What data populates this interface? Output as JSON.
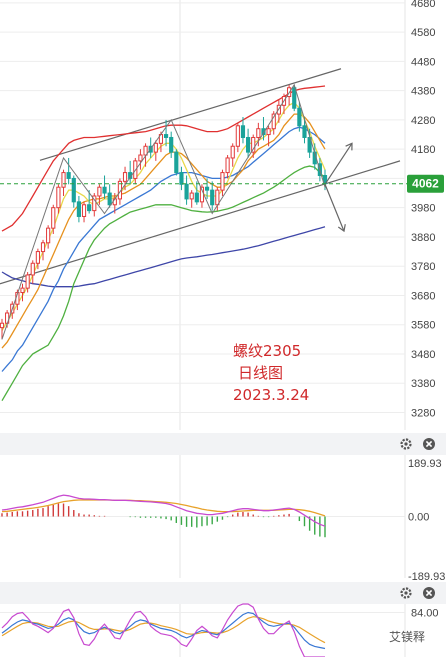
{
  "chart_data": [
    {
      "type": "candlestick",
      "annotation": {
        "line1": "螺纹2305",
        "line2": "日线图",
        "line3": "2023.3.24"
      },
      "y_ticks": [
        "4680",
        "4580",
        "4480",
        "4380",
        "4280",
        "4180",
        "4080",
        "3980",
        "3880",
        "3780",
        "3680",
        "3580",
        "3480",
        "3380",
        "3280"
      ],
      "ylim": [
        3220,
        4690
      ],
      "current_price": "4062",
      "colors": {
        "up": "#e23a3a",
        "down": "#1aa39a",
        "ma5": "#e8d84a",
        "ma10": "#e6911e",
        "ma20": "#3a78d4",
        "ma60": "#3e46a8",
        "ma120": "#4fb040",
        "boll_up": "#e03030",
        "channel": "#666666"
      },
      "candles": [
        {
          "o": 3570,
          "h": 3600,
          "l": 3530,
          "c": 3585
        },
        {
          "o": 3585,
          "h": 3630,
          "l": 3570,
          "c": 3620
        },
        {
          "o": 3620,
          "h": 3660,
          "l": 3600,
          "c": 3650
        },
        {
          "o": 3650,
          "h": 3700,
          "l": 3630,
          "c": 3690
        },
        {
          "o": 3690,
          "h": 3720,
          "l": 3660,
          "c": 3705
        },
        {
          "o": 3705,
          "h": 3760,
          "l": 3690,
          "c": 3750
        },
        {
          "o": 3750,
          "h": 3800,
          "l": 3720,
          "c": 3790
        },
        {
          "o": 3790,
          "h": 3840,
          "l": 3770,
          "c": 3830
        },
        {
          "o": 3830,
          "h": 3870,
          "l": 3800,
          "c": 3860
        },
        {
          "o": 3860,
          "h": 3920,
          "l": 3840,
          "c": 3910
        },
        {
          "o": 3910,
          "h": 3990,
          "l": 3890,
          "c": 3980
        },
        {
          "o": 3980,
          "h": 4060,
          "l": 3960,
          "c": 4050
        },
        {
          "o": 4050,
          "h": 4110,
          "l": 4020,
          "c": 4100
        },
        {
          "o": 4100,
          "h": 4150,
          "l": 4060,
          "c": 4080
        },
        {
          "o": 4080,
          "h": 4090,
          "l": 3980,
          "c": 4000
        },
        {
          "o": 4000,
          "h": 4020,
          "l": 3930,
          "c": 3950
        },
        {
          "o": 3950,
          "h": 4000,
          "l": 3930,
          "c": 3990
        },
        {
          "o": 3990,
          "h": 4040,
          "l": 3960,
          "c": 3970
        },
        {
          "o": 3970,
          "h": 4030,
          "l": 3950,
          "c": 4020
        },
        {
          "o": 4020,
          "h": 4060,
          "l": 3990,
          "c": 4050
        },
        {
          "o": 4050,
          "h": 4090,
          "l": 4010,
          "c": 4030
        },
        {
          "o": 4030,
          "h": 4060,
          "l": 3980,
          "c": 3990
        },
        {
          "o": 3990,
          "h": 4030,
          "l": 3960,
          "c": 4010
        },
        {
          "o": 4010,
          "h": 4080,
          "l": 3990,
          "c": 4070
        },
        {
          "o": 4070,
          "h": 4120,
          "l": 4040,
          "c": 4100
        },
        {
          "o": 4100,
          "h": 4140,
          "l": 4060,
          "c": 4080
        },
        {
          "o": 4080,
          "h": 4150,
          "l": 4060,
          "c": 4140
        },
        {
          "o": 4140,
          "h": 4180,
          "l": 4110,
          "c": 4160
        },
        {
          "o": 4160,
          "h": 4200,
          "l": 4120,
          "c": 4190
        },
        {
          "o": 4190,
          "h": 4220,
          "l": 4150,
          "c": 4170
        },
        {
          "o": 4170,
          "h": 4210,
          "l": 4140,
          "c": 4200
        },
        {
          "o": 4200,
          "h": 4240,
          "l": 4170,
          "c": 4230
        },
        {
          "o": 4230,
          "h": 4280,
          "l": 4190,
          "c": 4220
        },
        {
          "o": 4220,
          "h": 4240,
          "l": 4150,
          "c": 4170
        },
        {
          "o": 4170,
          "h": 4180,
          "l": 4090,
          "c": 4100
        },
        {
          "o": 4100,
          "h": 4120,
          "l": 4040,
          "c": 4060
        },
        {
          "o": 4060,
          "h": 4090,
          "l": 3990,
          "c": 4010
        },
        {
          "o": 4010,
          "h": 4040,
          "l": 3980,
          "c": 4030
        },
        {
          "o": 4030,
          "h": 4070,
          "l": 3990,
          "c": 4000
        },
        {
          "o": 4000,
          "h": 4060,
          "l": 3980,
          "c": 4050
        },
        {
          "o": 4050,
          "h": 4080,
          "l": 4010,
          "c": 4040
        },
        {
          "o": 4040,
          "h": 4070,
          "l": 3970,
          "c": 3990
        },
        {
          "o": 3990,
          "h": 4050,
          "l": 3970,
          "c": 4040
        },
        {
          "o": 4040,
          "h": 4110,
          "l": 4020,
          "c": 4100
        },
        {
          "o": 4100,
          "h": 4160,
          "l": 4080,
          "c": 4150
        },
        {
          "o": 4150,
          "h": 4200,
          "l": 4120,
          "c": 4190
        },
        {
          "o": 4190,
          "h": 4270,
          "l": 4170,
          "c": 4260
        },
        {
          "o": 4260,
          "h": 4290,
          "l": 4200,
          "c": 4220
        },
        {
          "o": 4220,
          "h": 4250,
          "l": 4150,
          "c": 4170
        },
        {
          "o": 4170,
          "h": 4230,
          "l": 4150,
          "c": 4220
        },
        {
          "o": 4220,
          "h": 4270,
          "l": 4190,
          "c": 4250
        },
        {
          "o": 4250,
          "h": 4290,
          "l": 4210,
          "c": 4230
        },
        {
          "o": 4230,
          "h": 4260,
          "l": 4190,
          "c": 4250
        },
        {
          "o": 4250,
          "h": 4310,
          "l": 4230,
          "c": 4300
        },
        {
          "o": 4300,
          "h": 4350,
          "l": 4270,
          "c": 4330
        },
        {
          "o": 4330,
          "h": 4370,
          "l": 4300,
          "c": 4360
        },
        {
          "o": 4360,
          "h": 4400,
          "l": 4330,
          "c": 4390
        },
        {
          "o": 4390,
          "h": 4400,
          "l": 4310,
          "c": 4320
        },
        {
          "o": 4320,
          "h": 4340,
          "l": 4240,
          "c": 4260
        },
        {
          "o": 4260,
          "h": 4290,
          "l": 4200,
          "c": 4220
        },
        {
          "o": 4220,
          "h": 4250,
          "l": 4150,
          "c": 4170
        },
        {
          "o": 4170,
          "h": 4200,
          "l": 4110,
          "c": 4130
        },
        {
          "o": 4130,
          "h": 4150,
          "l": 4070,
          "c": 4090
        },
        {
          "o": 4090,
          "h": 4110,
          "l": 4040,
          "c": 4062
        }
      ],
      "ma5": [
        3560,
        3590,
        3620,
        3650,
        3680,
        3710,
        3750,
        3790,
        3830,
        3870,
        3910,
        3960,
        4010,
        4040,
        4040,
        4030,
        4020,
        4000,
        3990,
        4000,
        4010,
        4010,
        4015,
        4030,
        4050,
        4060,
        4080,
        4100,
        4130,
        4150,
        4170,
        4190,
        4200,
        4200,
        4180,
        4150,
        4110,
        4070,
        4040,
        4030,
        4020,
        4020,
        4020,
        4040,
        4070,
        4110,
        4150,
        4180,
        4200,
        4200,
        4210,
        4220,
        4235,
        4250,
        4280,
        4310,
        4330,
        4340,
        4320,
        4280,
        4240,
        4190,
        4150,
        4110
      ],
      "ma10": [
        3500,
        3520,
        3550,
        3580,
        3610,
        3640,
        3670,
        3700,
        3740,
        3780,
        3820,
        3860,
        3900,
        3940,
        3970,
        3990,
        4000,
        4005,
        4010,
        4010,
        4015,
        4020,
        4020,
        4025,
        4030,
        4040,
        4050,
        4060,
        4080,
        4100,
        4120,
        4140,
        4160,
        4170,
        4170,
        4165,
        4150,
        4130,
        4110,
        4090,
        4070,
        4060,
        4050,
        4050,
        4060,
        4070,
        4090,
        4110,
        4140,
        4160,
        4180,
        4190,
        4200,
        4210,
        4230,
        4260,
        4280,
        4300,
        4300,
        4290,
        4270,
        4240,
        4210,
        4180
      ],
      "ma20": [
        3420,
        3440,
        3460,
        3490,
        3510,
        3540,
        3570,
        3600,
        3630,
        3660,
        3700,
        3730,
        3770,
        3800,
        3830,
        3860,
        3880,
        3900,
        3920,
        3940,
        3950,
        3960,
        3970,
        3980,
        3990,
        4000,
        4010,
        4020,
        4030,
        4040,
        4055,
        4070,
        4080,
        4090,
        4095,
        4100,
        4100,
        4100,
        4095,
        4090,
        4085,
        4080,
        4080,
        4080,
        4085,
        4090,
        4100,
        4110,
        4120,
        4135,
        4150,
        4165,
        4180,
        4195,
        4210,
        4225,
        4240,
        4250,
        4255,
        4250,
        4240,
        4230,
        4215,
        4200
      ],
      "ma60": [
        3760,
        3750,
        3740,
        3735,
        3730,
        3725,
        3720,
        3718,
        3715,
        3712,
        3710,
        3710,
        3710,
        3710,
        3710,
        3712,
        3715,
        3718,
        3720,
        3725,
        3730,
        3735,
        3740,
        3745,
        3750,
        3755,
        3760,
        3765,
        3770,
        3775,
        3780,
        3785,
        3790,
        3795,
        3800,
        3805,
        3808,
        3810,
        3812,
        3815,
        3818,
        3820,
        3823,
        3826,
        3829,
        3832,
        3835,
        3838,
        3842,
        3846,
        3850,
        3855,
        3860,
        3865,
        3870,
        3875,
        3880,
        3885,
        3890,
        3895,
        3900,
        3905,
        3910,
        3915
      ],
      "ma120": [
        3320,
        3350,
        3380,
        3410,
        3440,
        3460,
        3480,
        3490,
        3500,
        3510,
        3540,
        3570,
        3610,
        3660,
        3720,
        3760,
        3800,
        3840,
        3870,
        3890,
        3910,
        3925,
        3935,
        3945,
        3955,
        3965,
        3970,
        3975,
        3980,
        3985,
        3990,
        3990,
        3990,
        3990,
        3985,
        3980,
        3975,
        3970,
        3968,
        3966,
        3965,
        3966,
        3968,
        3972,
        3976,
        3982,
        3990,
        3998,
        4006,
        4014,
        4022,
        4030,
        4040,
        4050,
        4062,
        4075,
        4088,
        4100,
        4110,
        4118,
        4122,
        4118,
        4100,
        4080
      ],
      "boll_up": [
        3900,
        3910,
        3920,
        3940,
        3960,
        3990,
        4020,
        4050,
        4080,
        4110,
        4140,
        4160,
        4180,
        4200,
        4210,
        4215,
        4220,
        4220,
        4220,
        4222,
        4224,
        4226,
        4228,
        4230,
        4232,
        4234,
        4236,
        4238,
        4240,
        4245,
        4250,
        4255,
        4260,
        4262,
        4262,
        4262,
        4260,
        4255,
        4250,
        4245,
        4240,
        4240,
        4240,
        4245,
        4250,
        4260,
        4270,
        4280,
        4290,
        4300,
        4310,
        4320,
        4330,
        4340,
        4350,
        4360,
        4370,
        4380,
        4385,
        4388,
        4390,
        4392,
        4394,
        4396
      ]
    },
    {
      "type": "macd",
      "y_ticks": [
        "189.93",
        "0.00",
        "-189.93"
      ],
      "ylim": [
        -189.93,
        189.93
      ],
      "dif": [
        20,
        22,
        25,
        28,
        30,
        33,
        36,
        40,
        44,
        50,
        56,
        62,
        66,
        64,
        60,
        56,
        54,
        54,
        53,
        52,
        52,
        51,
        50,
        50,
        50,
        49,
        48,
        47,
        46,
        45,
        44,
        42,
        40,
        36,
        30,
        24,
        18,
        14,
        10,
        8,
        6,
        6,
        8,
        10,
        14,
        18,
        22,
        24,
        24,
        22,
        20,
        18,
        18,
        20,
        22,
        24,
        26,
        22,
        14,
        4,
        -6,
        -16,
        -24,
        -30
      ],
      "dea": [
        15,
        16,
        18,
        20,
        22,
        24,
        26,
        28,
        31,
        34,
        38,
        42,
        46,
        48,
        50,
        51,
        51,
        51,
        51,
        51,
        51,
        51,
        50,
        50,
        50,
        50,
        49,
        49,
        48,
        47,
        46,
        45,
        44,
        42,
        40,
        37,
        34,
        30,
        27,
        23,
        20,
        18,
        16,
        15,
        15,
        15,
        16,
        17,
        18,
        19,
        19,
        19,
        19,
        19,
        20,
        21,
        22,
        22,
        21,
        19,
        16,
        12,
        7,
        2
      ],
      "hist": [
        10,
        12,
        14,
        16,
        16,
        18,
        20,
        24,
        26,
        32,
        36,
        40,
        40,
        32,
        20,
        10,
        6,
        6,
        4,
        2,
        2,
        0,
        0,
        0,
        0,
        -2,
        -2,
        -4,
        -4,
        -4,
        -4,
        -6,
        -8,
        -12,
        -20,
        -26,
        -32,
        -32,
        -34,
        -30,
        -28,
        -24,
        -16,
        -10,
        -2,
        6,
        12,
        14,
        12,
        6,
        2,
        -2,
        -2,
        2,
        4,
        6,
        8,
        0,
        -14,
        -30,
        -44,
        -56,
        -62,
        -64
      ]
    },
    {
      "type": "kdj",
      "y_ticks": [
        "84.00"
      ],
      "ylim": [
        0,
        100
      ],
      "k": [
        45,
        52,
        60,
        66,
        70,
        68,
        64,
        62,
        58,
        54,
        56,
        62,
        70,
        74,
        70,
        58,
        48,
        44,
        46,
        52,
        56,
        52,
        46,
        44,
        50,
        58,
        66,
        70,
        68,
        62,
        58,
        54,
        52,
        50,
        46,
        40,
        36,
        40,
        46,
        50,
        48,
        44,
        42,
        48,
        56,
        64,
        72,
        80,
        84,
        82,
        74,
        66,
        60,
        58,
        60,
        62,
        64,
        56,
        44,
        32,
        24,
        20,
        18,
        16
      ],
      "d": [
        40,
        46,
        52,
        58,
        63,
        65,
        65,
        64,
        61,
        58,
        57,
        58,
        62,
        66,
        68,
        65,
        60,
        55,
        52,
        52,
        53,
        53,
        51,
        49,
        49,
        52,
        57,
        62,
        64,
        64,
        62,
        59,
        57,
        55,
        52,
        48,
        44,
        43,
        44,
        46,
        47,
        46,
        45,
        46,
        49,
        54,
        60,
        67,
        73,
        76,
        75,
        72,
        68,
        65,
        63,
        62,
        62,
        60,
        56,
        50,
        44,
        38,
        32,
        27
      ],
      "j": [
        55,
        64,
        76,
        82,
        84,
        74,
        62,
        58,
        52,
        46,
        54,
        70,
        86,
        90,
        74,
        44,
        24,
        22,
        34,
        52,
        62,
        50,
        36,
        34,
        52,
        70,
        84,
        86,
        76,
        58,
        50,
        44,
        42,
        40,
        34,
        24,
        20,
        34,
        50,
        58,
        50,
        40,
        36,
        52,
        70,
        84,
        96,
        100,
        100,
        94,
        72,
        54,
        44,
        44,
        54,
        62,
        68,
        48,
        20,
        0,
        0,
        0,
        0,
        0
      ]
    }
  ],
  "icons": {
    "settings": "gear-icon",
    "close": "close-icon"
  },
  "watermark": "艾镁释"
}
